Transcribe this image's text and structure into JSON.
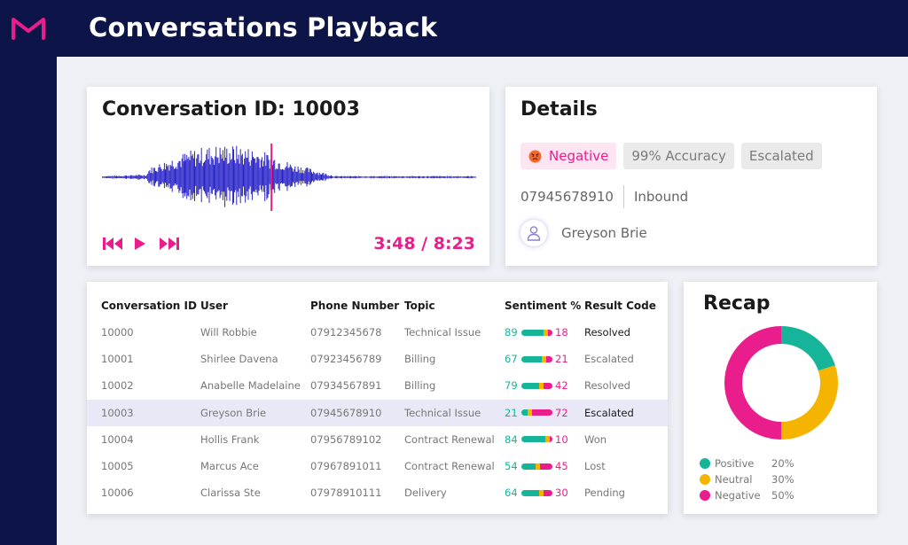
{
  "app": {
    "title": "Conversations Playback"
  },
  "player": {
    "title": "Conversation ID: 10003",
    "time": "3:48 / 8:23",
    "progress": 0.453
  },
  "details": {
    "title": "Details",
    "tags": [
      "Negative",
      "99% Accuracy",
      "Escalated"
    ],
    "phone": "07945678910",
    "direction": "Inbound",
    "user": "Greyson Brie"
  },
  "table": {
    "headers": [
      "Conversation ID",
      "User",
      "Phone Number",
      "Topic",
      "Sentiment %",
      "Result Code"
    ],
    "rows": [
      {
        "id": "10000",
        "user": "Will Robbie",
        "phone": "07912345678",
        "topic": "Technical Issue",
        "pos": "89",
        "neg": "18",
        "result": "Resolved"
      },
      {
        "id": "10001",
        "user": "Shirlee Davena",
        "phone": "07923456789",
        "topic": "Billing",
        "pos": "67",
        "neg": "21",
        "result": "Escalated"
      },
      {
        "id": "10002",
        "user": "Anabelle Madelaine",
        "phone": "07934567891",
        "topic": "Billing",
        "pos": "79",
        "neg": "42",
        "result": "Resolved"
      },
      {
        "id": "10003",
        "user": "Greyson Brie",
        "phone": "07945678910",
        "topic": "Technical Issue",
        "pos": "21",
        "neg": "72",
        "result": "Escalated"
      },
      {
        "id": "10004",
        "user": "Hollis Frank",
        "phone": "07956789102",
        "topic": "Contract Renewal",
        "pos": "84",
        "neg": "10",
        "result": "Won"
      },
      {
        "id": "10005",
        "user": "Marcus Ace",
        "phone": "07967891011",
        "topic": "Contract Renewal",
        "pos": "54",
        "neg": "45",
        "result": "Lost"
      },
      {
        "id": "10006",
        "user": "Clarissa Ste",
        "phone": "07978910111",
        "topic": "Delivery",
        "pos": "64",
        "neg": "30",
        "result": "Pending"
      }
    ]
  },
  "recap": {
    "title": "Recap",
    "items": [
      {
        "label": "Positive",
        "value": "20%"
      },
      {
        "label": "Neutral",
        "value": "30%"
      },
      {
        "label": "Negative",
        "value": "50%"
      }
    ]
  },
  "chart_data": {
    "type": "pie",
    "title": "Recap",
    "categories": [
      "Positive",
      "Neutral",
      "Negative"
    ],
    "values": [
      20,
      30,
      50
    ],
    "colors": [
      "#16b59a",
      "#f5b400",
      "#e91e8c"
    ]
  },
  "colors": {
    "navy": "#0d1548",
    "accent": "#e91e8c",
    "waveform": "#2a24c8",
    "positive": "#16b59a",
    "neutral": "#f5b400",
    "negative": "#e91e8c"
  },
  "icons": [
    "logo-icon",
    "skip-back-icon",
    "play-icon",
    "skip-forward-icon",
    "angry-emoji-icon",
    "user-icon"
  ]
}
